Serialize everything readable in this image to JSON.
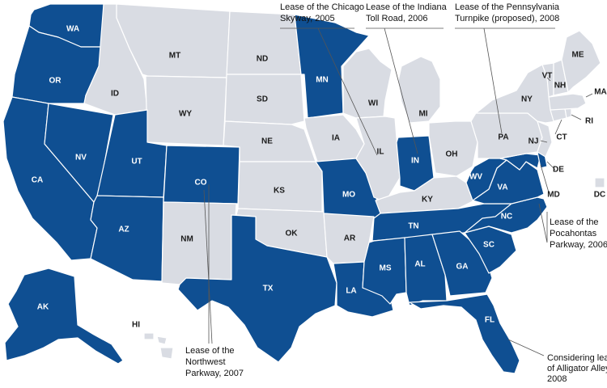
{
  "colors": {
    "highlighted": "#0f4f92",
    "other": "#d9dce3",
    "label_on_highlighted": "#ffffff",
    "label_on_other": "#1a1a1a"
  },
  "states": {
    "WA": {
      "label": "WA",
      "highlighted": true
    },
    "OR": {
      "label": "OR",
      "highlighted": true
    },
    "CA": {
      "label": "CA",
      "highlighted": true
    },
    "NV": {
      "label": "NV",
      "highlighted": true
    },
    "ID": {
      "label": "ID",
      "highlighted": false
    },
    "MT": {
      "label": "MT",
      "highlighted": false
    },
    "WY": {
      "label": "WY",
      "highlighted": false
    },
    "UT": {
      "label": "UT",
      "highlighted": true
    },
    "AZ": {
      "label": "AZ",
      "highlighted": true
    },
    "CO": {
      "label": "CO",
      "highlighted": true
    },
    "NM": {
      "label": "NM",
      "highlighted": false
    },
    "ND": {
      "label": "ND",
      "highlighted": false
    },
    "SD": {
      "label": "SD",
      "highlighted": false
    },
    "NE": {
      "label": "NE",
      "highlighted": false
    },
    "KS": {
      "label": "KS",
      "highlighted": false
    },
    "OK": {
      "label": "OK",
      "highlighted": false
    },
    "TX": {
      "label": "TX",
      "highlighted": true
    },
    "MN": {
      "label": "MN",
      "highlighted": true
    },
    "IA": {
      "label": "IA",
      "highlighted": false
    },
    "MO": {
      "label": "MO",
      "highlighted": true
    },
    "AR": {
      "label": "AR",
      "highlighted": false
    },
    "LA": {
      "label": "LA",
      "highlighted": true
    },
    "WI": {
      "label": "WI",
      "highlighted": false
    },
    "IL": {
      "label": "IL",
      "highlighted": false
    },
    "MI": {
      "label": "MI",
      "highlighted": false
    },
    "IN": {
      "label": "IN",
      "highlighted": true
    },
    "OH": {
      "label": "OH",
      "highlighted": false
    },
    "KY": {
      "label": "KY",
      "highlighted": false
    },
    "TN": {
      "label": "TN",
      "highlighted": true
    },
    "MS": {
      "label": "MS",
      "highlighted": true
    },
    "AL": {
      "label": "AL",
      "highlighted": true
    },
    "GA": {
      "label": "GA",
      "highlighted": true
    },
    "FL": {
      "label": "FL",
      "highlighted": true
    },
    "SC": {
      "label": "SC",
      "highlighted": true
    },
    "NC": {
      "label": "NC",
      "highlighted": true
    },
    "VA": {
      "label": "VA",
      "highlighted": true
    },
    "WV": {
      "label": "WV",
      "highlighted": true
    },
    "MD": {
      "label": "MD",
      "highlighted": true
    },
    "DE": {
      "label": "DE",
      "highlighted": true
    },
    "PA": {
      "label": "PA",
      "highlighted": false
    },
    "NJ": {
      "label": "NJ",
      "highlighted": false
    },
    "NY": {
      "label": "NY",
      "highlighted": false
    },
    "CT": {
      "label": "CT",
      "highlighted": false
    },
    "RI": {
      "label": "RI",
      "highlighted": false
    },
    "MA": {
      "label": "MA",
      "highlighted": false
    },
    "VT": {
      "label": "VT",
      "highlighted": false
    },
    "NH": {
      "label": "NH",
      "highlighted": false
    },
    "ME": {
      "label": "ME",
      "highlighted": false
    },
    "AK": {
      "label": "AK",
      "highlighted": true
    },
    "HI": {
      "label": "HI",
      "highlighted": false
    },
    "DC": {
      "label": "DC",
      "highlighted": false
    }
  },
  "annotations": {
    "chicago": [
      "Lease of the Chicago",
      "Skyway, 2005"
    ],
    "indiana": [
      "Lease of the Indiana",
      "Toll Road, 2006"
    ],
    "pennsylvania": [
      "Lease of the Pennsylvania",
      "Turnpike (proposed), 2008"
    ],
    "pocahontas": [
      "Lease of the",
      "Pocahontas",
      "Parkway, 2006"
    ],
    "northwest": [
      "Lease of the",
      "Northwest",
      "Parkway, 2007"
    ],
    "alligator": [
      "Considering lease",
      "of Alligator Alley",
      "2008"
    ]
  }
}
